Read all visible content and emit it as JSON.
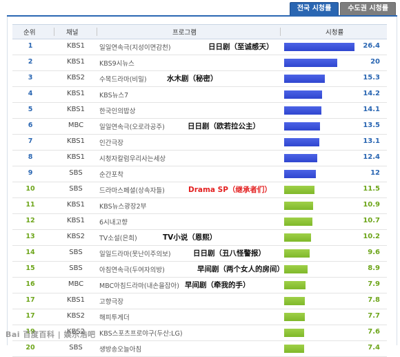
{
  "tabs": [
    {
      "label": "전국 시청률",
      "active": true
    },
    {
      "label": "수도권 시청률",
      "active": false
    }
  ],
  "table": {
    "headers": {
      "rank": "순위",
      "channel": "채널",
      "program": "프로그램",
      "rating": "시청률"
    }
  },
  "watermark": "Bai 百度百科 | 娱乐浩吧",
  "colors": {
    "tab_active": "#2a66b2",
    "blue_bar": "#2f46cf",
    "green_bar": "#7fb82a",
    "red_annotation": "#e32020"
  },
  "chart_data": {
    "type": "bar",
    "orientation": "horizontal",
    "title": "",
    "xlabel": "시청률",
    "ylabel": "",
    "xlim": [
      0,
      26.4
    ],
    "rows": [
      {
        "rank": "1",
        "channel": "KBS1",
        "program": "일일연속극(지성이면감천)",
        "annotation": "日日剧（至诚感天）",
        "value": 26.4,
        "color": "blue"
      },
      {
        "rank": "2",
        "channel": "KBS1",
        "program": "KBS9시뉴스",
        "annotation": "",
        "value": 20,
        "color": "blue"
      },
      {
        "rank": "3",
        "channel": "KBS2",
        "program": "수목드라마(비밀)",
        "annotation": "水木剧（秘密）",
        "value": 15.3,
        "color": "blue"
      },
      {
        "rank": "4",
        "channel": "KBS1",
        "program": "KBS뉴스7",
        "annotation": "",
        "value": 14.2,
        "color": "blue"
      },
      {
        "rank": "5",
        "channel": "KBS1",
        "program": "한국인의밥상",
        "annotation": "",
        "value": 14.1,
        "color": "blue"
      },
      {
        "rank": "6",
        "channel": "MBC",
        "program": "일일연속극(오로라공주)",
        "annotation": "日日剧（欧若拉公主）",
        "value": 13.5,
        "color": "blue"
      },
      {
        "rank": "7",
        "channel": "KBS1",
        "program": "인간극장",
        "annotation": "",
        "value": 13.1,
        "color": "blue"
      },
      {
        "rank": "8",
        "channel": "KBS1",
        "program": "시청자칼럼우리사는세상",
        "annotation": "",
        "value": 12.4,
        "color": "blue"
      },
      {
        "rank": "9",
        "channel": "SBS",
        "program": "순간포착",
        "annotation": "",
        "value": 12,
        "color": "blue"
      },
      {
        "rank": "10",
        "channel": "SBS",
        "program": "드라마스페셜(상속자들)",
        "annotation": "Drama SP（继承者们）",
        "annotation_red": true,
        "value": 11.5,
        "color": "green"
      },
      {
        "rank": "11",
        "channel": "KBS1",
        "program": "KBS뉴스광장2부",
        "annotation": "",
        "value": 10.9,
        "color": "green"
      },
      {
        "rank": "12",
        "channel": "KBS1",
        "program": "6시내고향",
        "annotation": "",
        "value": 10.7,
        "color": "green"
      },
      {
        "rank": "13",
        "channel": "KBS2",
        "program": "TV소설(은희)",
        "annotation": "TV小说（恩熙）",
        "value": 10.2,
        "color": "green"
      },
      {
        "rank": "14",
        "channel": "SBS",
        "program": "일일드라마(못난이주의보)",
        "annotation": "日日剧（丑八怪警报）",
        "value": 9.6,
        "color": "green"
      },
      {
        "rank": "15",
        "channel": "SBS",
        "program": "아침연속극(두여자의방)",
        "annotation": "早间剧（两个女人的房间）",
        "value": 8.9,
        "color": "green"
      },
      {
        "rank": "16",
        "channel": "MBC",
        "program": "MBC아침드라마(내손을잡아)",
        "annotation": "早间剧（牵我的手）",
        "value": 7.9,
        "color": "green"
      },
      {
        "rank": "17",
        "channel": "KBS1",
        "program": "고향극장",
        "annotation": "",
        "value": 7.8,
        "color": "green"
      },
      {
        "rank": "17",
        "channel": "KBS2",
        "program": "해피투게더",
        "annotation": "",
        "value": 7.7,
        "color": "green"
      },
      {
        "rank": "19",
        "channel": "KBS2",
        "program": "KBS스포츠프로야구(두산:LG)",
        "annotation": "",
        "value": 7.6,
        "color": "green"
      },
      {
        "rank": "20",
        "channel": "SBS",
        "program": "생방송오늘아침",
        "annotation": "",
        "value": 7.4,
        "color": "green"
      }
    ]
  }
}
